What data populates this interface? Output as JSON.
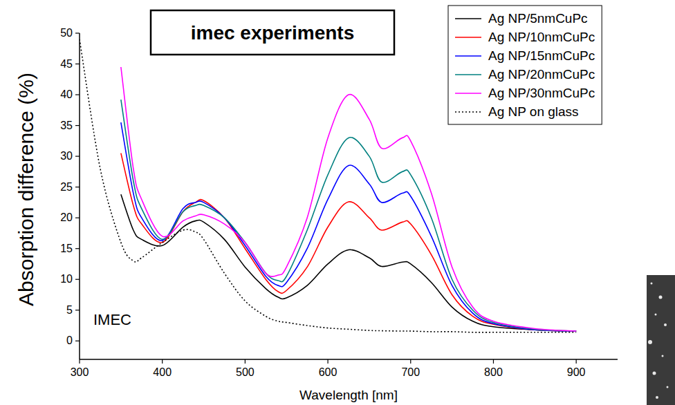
{
  "chart_data": {
    "type": "line",
    "title": "imec experiments",
    "annotations": [
      "IMEC"
    ],
    "x_label": "Wavelength [nm]",
    "y_label": "Absorption difference (%)",
    "x": [
      300,
      325,
      350,
      365,
      375,
      400,
      425,
      440,
      450,
      475,
      500,
      525,
      540,
      550,
      575,
      600,
      625,
      650,
      665,
      690,
      700,
      725,
      750,
      775,
      800,
      850,
      900
    ],
    "xlim": [
      300,
      950
    ],
    "xticks": [
      300,
      400,
      500,
      600,
      700,
      800,
      900
    ],
    "ylim": [
      -3,
      50
    ],
    "yticks": [
      0,
      5,
      10,
      15,
      20,
      25,
      30,
      35,
      40,
      45,
      50
    ],
    "grid": false,
    "legend": "upper right",
    "series": [
      {
        "name": "Ag NP/5nmCuPc",
        "color": "#000000",
        "line_style": "solid",
        "values": [
          null,
          null,
          23.8,
          18,
          16.5,
          15.5,
          18.5,
          19.5,
          19.3,
          16.5,
          12,
          8.5,
          7.1,
          7,
          9,
          12.5,
          14.8,
          13.5,
          12.1,
          12.8,
          12.5,
          9.5,
          5.5,
          3.2,
          2.3,
          1.8,
          1.6
        ]
      },
      {
        "name": "Ag NP/10nmCuPc",
        "color": "#ff0000",
        "line_style": "solid",
        "values": [
          null,
          null,
          30.5,
          22,
          19,
          16,
          21,
          22.5,
          22.8,
          20,
          15,
          10,
          8,
          8.2,
          12,
          18.5,
          22.6,
          20,
          18,
          19.3,
          19,
          14,
          7.5,
          4,
          2.7,
          1.8,
          1.6
        ]
      },
      {
        "name": "Ag NP/15nmCuPc",
        "color": "#0000ff",
        "line_style": "solid",
        "values": [
          null,
          null,
          35.5,
          24,
          20,
          16.3,
          21.5,
          22.5,
          22.5,
          20,
          15.5,
          10.5,
          9,
          9.5,
          15,
          23,
          28.5,
          25.5,
          22.5,
          24,
          23.5,
          17,
          9,
          4.5,
          2.8,
          1.8,
          1.6
        ]
      },
      {
        "name": "Ag NP/20nmCuPc",
        "color": "#008080",
        "line_style": "solid",
        "values": [
          null,
          null,
          39.2,
          26,
          21.5,
          16.5,
          21,
          22,
          22,
          20,
          16,
          11,
          9.8,
          10.5,
          18,
          27,
          33,
          30,
          25.8,
          27.5,
          27,
          20,
          10,
          5,
          3,
          1.9,
          1.6
        ]
      },
      {
        "name": "Ag NP/30nmCuPc",
        "color": "#ff00ff",
        "line_style": "solid",
        "values": [
          null,
          null,
          44.5,
          28,
          23,
          17,
          19.5,
          20.3,
          20.5,
          19,
          16,
          11,
          10.7,
          12,
          20,
          33,
          40,
          36,
          31.3,
          33,
          32.5,
          24,
          12,
          5.5,
          3.2,
          2,
          1.6
        ]
      },
      {
        "name": "Ag NP on glass",
        "color": "#000000",
        "line_style": "dotted",
        "values": [
          49,
          28,
          16,
          13,
          13.5,
          16,
          18,
          17.7,
          16.5,
          11,
          6.5,
          4,
          3.2,
          3,
          2.5,
          2.1,
          1.9,
          1.7,
          1.65,
          1.6,
          1.6,
          1.5,
          1.5,
          1.4,
          1.4,
          1.4,
          1.4
        ]
      }
    ]
  }
}
